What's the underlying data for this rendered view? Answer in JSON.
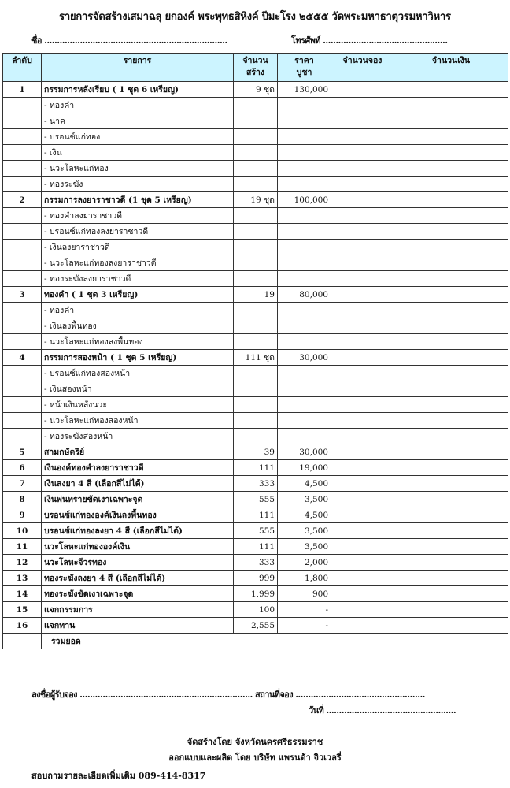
{
  "title": "รายการจัดสร้างเสมาฉลุ ยกองค์ พระพุทธสิหิงค์ ปีมะโรง ๒๕๕๕    วัดพระมหาธาตุวรมหาวิหาร",
  "name_label": "ชื่อ ........................................................................",
  "phone_label": "โทรศัพท์ .................................................",
  "colors": {
    "header_bg": "#ccf4ff"
  },
  "table": {
    "headers": [
      "ลำดับ",
      "รายการ",
      "จำนวน\nสร้าง",
      "ราคา\nบูชา",
      "จำนวนจอง",
      "จำนวนเงิน"
    ],
    "rows": [
      {
        "no": "1",
        "name": "กรรมการหลังเรียบ   ( 1 ชุด 6 เหรียญ)",
        "qty": "9 ชุด",
        "price": "130,000",
        "main": true
      },
      {
        "no": "",
        "name": "- ทองคำ",
        "qty": "",
        "price": ""
      },
      {
        "no": "",
        "name": "-  นาค",
        "qty": "",
        "price": ""
      },
      {
        "no": "",
        "name": "- บรอนซ์แก่ทอง",
        "qty": "",
        "price": ""
      },
      {
        "no": "",
        "name": "- เงิน",
        "qty": "",
        "price": ""
      },
      {
        "no": "",
        "name": "- นวะโลหะแก่ทอง",
        "qty": "",
        "price": ""
      },
      {
        "no": "",
        "name": "- ทองระฆัง",
        "qty": "",
        "price": ""
      },
      {
        "no": "2",
        "name": "กรรมการลงยาราชาวดี (1 ชุด 5 เหรียญ)",
        "qty": "19 ชุด",
        "price": "100,000",
        "main": true
      },
      {
        "no": "",
        "name": "- ทองคำลงยาราชาวดี",
        "qty": "",
        "price": ""
      },
      {
        "no": "",
        "name": "- บรอนซ์แก่ทองลงยาราชาวดี",
        "qty": "",
        "price": ""
      },
      {
        "no": "",
        "name": "- เงินลงยาราชาวดี",
        "qty": "",
        "price": ""
      },
      {
        "no": "",
        "name": "- นวะโลหะแก่ทองลงยาราชาวดี",
        "qty": "",
        "price": ""
      },
      {
        "no": "",
        "name": "- ทองระฆังลงยาราชาวดี",
        "qty": "",
        "price": ""
      },
      {
        "no": "3",
        "name": "ทองคำ ( 1 ชุด 3 เหรียญ)",
        "qty": "19",
        "price": "80,000",
        "main": true
      },
      {
        "no": "",
        "name": "- ทองคำ",
        "qty": "",
        "price": ""
      },
      {
        "no": "",
        "name": "- เงินลงพื้นทอง",
        "qty": "",
        "price": ""
      },
      {
        "no": "",
        "name": "- นวะโลหะแก่ทองลงพื้นทอง",
        "qty": "",
        "price": ""
      },
      {
        "no": "4",
        "name": "กรรมการสองหน้า ( 1 ชุด 5 เหรียญ)",
        "qty": "111 ชุด",
        "price": "30,000",
        "main": true
      },
      {
        "no": "",
        "name": "- บรอนซ์แก่ทองสองหน้า",
        "qty": "",
        "price": ""
      },
      {
        "no": "",
        "name": "- เงินสองหน้า",
        "qty": "",
        "price": ""
      },
      {
        "no": "",
        "name": "-  หน้าเงินหลังนวะ",
        "qty": "",
        "price": ""
      },
      {
        "no": "",
        "name": "- นวะโลหะแก่ทองสองหน้า",
        "qty": "",
        "price": ""
      },
      {
        "no": "",
        "name": "- ทองระฆังสองหน้า",
        "qty": "",
        "price": ""
      },
      {
        "no": "5",
        "name": "สามกษัตริย์",
        "qty": "39",
        "price": "30,000",
        "main": true
      },
      {
        "no": "6",
        "name": "เงินองค์ทองคำลงยาราชาวดี",
        "qty": "111",
        "price": "19,000",
        "main": true
      },
      {
        "no": "7",
        "name": "เงินลงยา 4 สี    (เลือกสีไม่ได้)",
        "qty": "333",
        "price": "4,500",
        "main": true
      },
      {
        "no": "8",
        "name": "เงินพ่นทรายขัดเงาเฉพาะจุด",
        "qty": "555",
        "price": "3,500",
        "main": true
      },
      {
        "no": "9",
        "name": "บรอนซ์แก่ทององค์เงินลงพื้นทอง",
        "qty": "111",
        "price": "4,500",
        "main": true
      },
      {
        "no": "10",
        "name": "บรอนซ์แก่ทองลงยา 4 สี (เลือกสีไม่ได้)",
        "qty": "555",
        "price": "3,500",
        "main": true
      },
      {
        "no": "11",
        "name": "นวะโลหะแก่ทององค์เงิน",
        "qty": "111",
        "price": "3,500",
        "main": true
      },
      {
        "no": "12",
        "name": "นวะโลหะจีวรทอง",
        "qty": "333",
        "price": "2,000",
        "main": true
      },
      {
        "no": "13",
        "name": "ทองระฆังลงยา 4 สี (เลือกสีไม่ได้)",
        "qty": "999",
        "price": "1,800",
        "main": true
      },
      {
        "no": "14",
        "name": "ทองระฆังขัดเงาเฉพาะจุด",
        "qty": "1,999",
        "price": "900",
        "main": true
      },
      {
        "no": "15",
        "name": "แจกกรรมการ",
        "qty": "100",
        "price": "-",
        "main": true
      },
      {
        "no": "16",
        "name": "แจกทาน",
        "qty": "2,555",
        "price": "-",
        "main": true
      }
    ],
    "total_label": "รวมยอด"
  },
  "footer": {
    "signer": "ลงชื่อผู้รับจอง .................................................................... สถานที่จอง   ...................................................",
    "date": "วันที่   ...................................................",
    "made_by": "จัดสร้างโดย จังหวัดนครศรีธรรมราช",
    "designed_by": "ออกแบบและผลิต โดย บริษัท แพรนด้า จิวเวลรี่",
    "contact": "สอบถามรายละเอียดเพิ่มเติม   089-414-8317"
  }
}
